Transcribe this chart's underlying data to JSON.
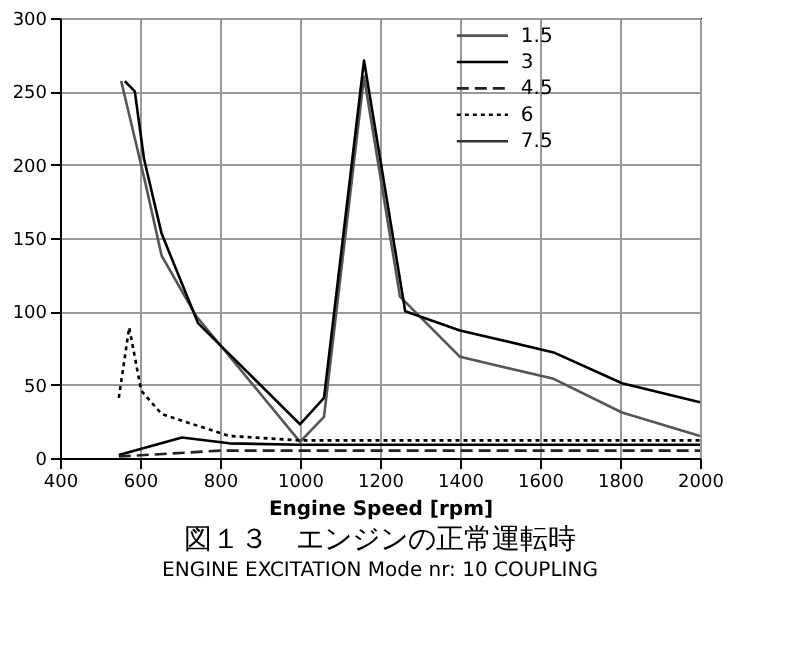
{
  "chart_data": {
    "type": "line",
    "title": "図１３　エンジンの正常運転時",
    "subtitle": "ENGINE EXCITATION  Mode nr: 10  COUPLING",
    "xlabel": "Engine Speed [rpm]",
    "xlim": [
      400,
      2000
    ],
    "xticks": [
      400,
      600,
      800,
      1000,
      1200,
      1400,
      1600,
      1800,
      2000
    ],
    "ylim": [
      0,
      300
    ],
    "yticks": [
      0,
      50,
      100,
      150,
      200,
      250,
      300
    ],
    "grid": true,
    "legend": "top right",
    "series": [
      {
        "name": "1.5",
        "color": "#555555",
        "line_style": "solid",
        "x": [
          553,
          613,
          654,
          740,
          1000,
          1060,
          1160,
          1250,
          1400,
          1634,
          1805,
          2000
        ],
        "values": [
          257,
          188,
          138,
          97,
          11,
          28,
          260,
          110,
          69,
          54,
          31,
          15
        ]
      },
      {
        "name": "3",
        "color": "#000000",
        "line_style": "solid",
        "x": [
          547,
          705,
          823,
          1000,
          1500,
          2000
        ],
        "values": [
          2,
          14,
          10,
          9,
          9,
          9
        ]
      },
      {
        "name": "4.5",
        "color": "#222222",
        "line_style": "dashed",
        "x": [
          547,
          800,
          1200,
          2000
        ],
        "values": [
          1,
          5,
          5,
          5
        ]
      },
      {
        "name": "6",
        "color": "#000000",
        "line_style": "dotted",
        "x": [
          547,
          573,
          603,
          654,
          823,
          1000,
          2000
        ],
        "values": [
          41,
          89,
          46,
          30,
          15,
          12,
          12
        ]
      },
      {
        "name": "7.5",
        "color": "#333333",
        "line_style": "solid"
      },
      {
        "color": "#000000",
        "line_style": "solid",
        "x": [
          562,
          587,
          610,
          654,
          745,
          1000,
          1060,
          1160,
          1263,
          1400,
          1634,
          1805,
          2000
        ],
        "values": [
          257,
          250,
          204,
          153,
          92,
          23,
          41,
          271,
          100,
          87,
          72,
          51,
          38
        ]
      }
    ]
  }
}
